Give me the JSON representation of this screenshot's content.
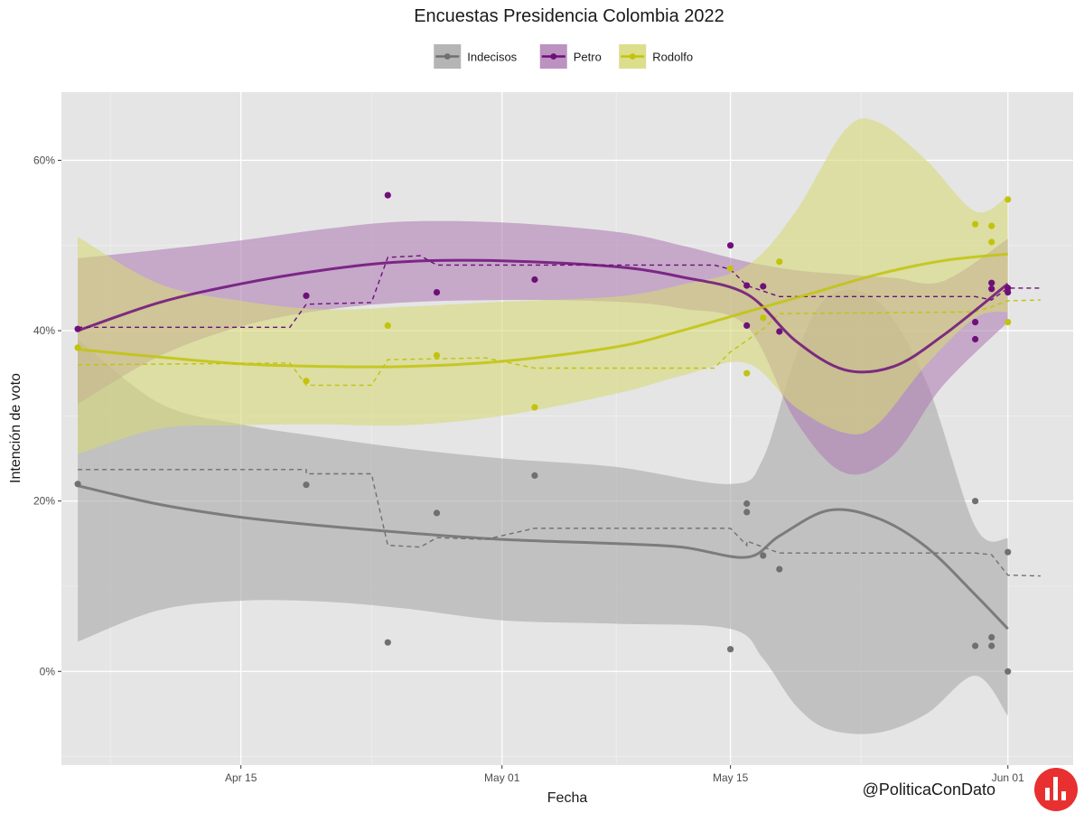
{
  "chart_data": {
    "type": "scatter",
    "title": "Encuestas Presidencia Colombia 2022",
    "xlabel": "Fecha",
    "ylabel": "Intención de voto",
    "x_ticks": [
      {
        "date": "2022-04-15",
        "label": "Apr 15"
      },
      {
        "date": "2022-05-01",
        "label": "May 01"
      },
      {
        "date": "2022-05-15",
        "label": "May 15"
      },
      {
        "date": "2022-06-01",
        "label": "Jun 01"
      }
    ],
    "y_ticks": [
      {
        "value": 0,
        "label": "0%"
      },
      {
        "value": 20,
        "label": "20%"
      },
      {
        "value": 40,
        "label": "40%"
      },
      {
        "value": 60,
        "label": "60%"
      }
    ],
    "xlim": [
      "2022-04-04",
      "2022-06-05"
    ],
    "ylim": [
      -11,
      68
    ],
    "grid": true,
    "legend_position": "top",
    "series": [
      {
        "name": "Indecisos",
        "color": "#707070",
        "fill": "#a8a8a8",
        "points": [
          [
            "2022-04-05",
            22
          ],
          [
            "2022-04-19",
            21.9
          ],
          [
            "2022-04-24",
            3.4
          ],
          [
            "2022-04-27",
            18.6
          ],
          [
            "2022-05-03",
            23
          ],
          [
            "2022-05-15",
            2.6
          ],
          [
            "2022-05-16",
            19.7
          ],
          [
            "2022-05-16",
            18.7
          ],
          [
            "2022-05-17",
            13.6
          ],
          [
            "2022-05-18",
            12
          ],
          [
            "2022-05-30",
            20
          ],
          [
            "2022-05-30",
            3
          ],
          [
            "2022-05-31",
            4
          ],
          [
            "2022-05-31",
            3
          ],
          [
            "2022-06-01",
            14
          ],
          [
            "2022-06-01",
            0
          ]
        ],
        "smooth": [
          [
            "2022-04-05",
            21.8
          ],
          [
            "2022-04-10",
            19.6
          ],
          [
            "2022-04-15",
            18.1
          ],
          [
            "2022-04-20",
            17.1
          ],
          [
            "2022-04-25",
            16.3
          ],
          [
            "2022-05-01",
            15.5
          ],
          [
            "2022-05-08",
            15
          ],
          [
            "2022-05-12",
            14.6
          ],
          [
            "2022-05-16",
            13.4
          ],
          [
            "2022-05-18",
            15.9
          ],
          [
            "2022-05-21",
            18.9
          ],
          [
            "2022-05-24",
            18
          ],
          [
            "2022-05-27",
            14.6
          ],
          [
            "2022-05-30",
            9
          ],
          [
            "2022-06-01",
            5
          ]
        ],
        "band": [
          [
            "2022-04-05",
            3.5,
            39
          ],
          [
            "2022-04-10",
            7.2,
            31.5
          ],
          [
            "2022-04-15",
            8.3,
            29
          ],
          [
            "2022-04-20",
            8.2,
            27.5
          ],
          [
            "2022-04-25",
            7.4,
            26.2
          ],
          [
            "2022-05-01",
            6,
            25
          ],
          [
            "2022-05-08",
            5.6,
            24
          ],
          [
            "2022-05-15",
            5,
            22
          ],
          [
            "2022-05-17",
            1.5,
            25
          ],
          [
            "2022-05-19",
            -4,
            37
          ],
          [
            "2022-05-21",
            -6.8,
            44
          ],
          [
            "2022-05-24",
            -7.2,
            43.5
          ],
          [
            "2022-05-27",
            -5,
            34
          ],
          [
            "2022-05-30",
            -0.5,
            17
          ],
          [
            "2022-06-01",
            -5.2,
            15.6
          ]
        ],
        "trend": [
          [
            "2022-04-05",
            23.7
          ],
          [
            "2022-04-19",
            23.7
          ],
          [
            "2022-04-19",
            23.2
          ],
          [
            "2022-04-23",
            23.2
          ],
          [
            "2022-04-24",
            14.8
          ],
          [
            "2022-04-26",
            14.6
          ],
          [
            "2022-04-27",
            15.7
          ],
          [
            "2022-04-30",
            15.5
          ],
          [
            "2022-05-03",
            16.8
          ],
          [
            "2022-05-15",
            16.8
          ],
          [
            "2022-05-16",
            14.8
          ],
          [
            "2022-05-16",
            15.3
          ],
          [
            "2022-05-18",
            13.9
          ],
          [
            "2022-05-30",
            13.9
          ],
          [
            "2022-05-31",
            13.7
          ],
          [
            "2022-06-01",
            11.3
          ],
          [
            "2022-06-03",
            11.2
          ]
        ]
      },
      {
        "name": "Petro",
        "color": "#6e0f7a",
        "fill": "#b07fb5",
        "points": [
          [
            "2022-04-05",
            40.2
          ],
          [
            "2022-04-19",
            44.1
          ],
          [
            "2022-04-24",
            55.9
          ],
          [
            "2022-04-27",
            44.5
          ],
          [
            "2022-05-03",
            46
          ],
          [
            "2022-05-15",
            50
          ],
          [
            "2022-05-16",
            45.3
          ],
          [
            "2022-05-16",
            40.6
          ],
          [
            "2022-05-17",
            45.2
          ],
          [
            "2022-05-18",
            39.9
          ],
          [
            "2022-05-30",
            41
          ],
          [
            "2022-05-30",
            39
          ],
          [
            "2022-05-31",
            45.6
          ],
          [
            "2022-05-31",
            44.9
          ],
          [
            "2022-06-01",
            45
          ],
          [
            "2022-06-01",
            44.5
          ]
        ],
        "smooth": [
          [
            "2022-04-05",
            40
          ],
          [
            "2022-04-10",
            43.3
          ],
          [
            "2022-04-15",
            45.5
          ],
          [
            "2022-04-20",
            47.1
          ],
          [
            "2022-04-25",
            48.1
          ],
          [
            "2022-05-01",
            48.2
          ],
          [
            "2022-05-08",
            47.5
          ],
          [
            "2022-05-12",
            46.3
          ],
          [
            "2022-05-16",
            44.3
          ],
          [
            "2022-05-19",
            38.8
          ],
          [
            "2022-05-22",
            35.4
          ],
          [
            "2022-05-25",
            35.8
          ],
          [
            "2022-05-28",
            39.4
          ],
          [
            "2022-06-01",
            45.5
          ]
        ],
        "band": [
          [
            "2022-04-05",
            31.4,
            48.5
          ],
          [
            "2022-04-10",
            37,
            49.5
          ],
          [
            "2022-04-15",
            40.5,
            50.6
          ],
          [
            "2022-04-20",
            42.4,
            51.9
          ],
          [
            "2022-04-25",
            43.3,
            52.8
          ],
          [
            "2022-05-01",
            43.6,
            52.7
          ],
          [
            "2022-05-08",
            43.4,
            51.6
          ],
          [
            "2022-05-12",
            42.6,
            50
          ],
          [
            "2022-05-16",
            40.5,
            48.1
          ],
          [
            "2022-05-19",
            29.4,
            47.1
          ],
          [
            "2022-05-22",
            23.3,
            46.6
          ],
          [
            "2022-05-25",
            25.4,
            46.2
          ],
          [
            "2022-05-28",
            33.5,
            45.8
          ],
          [
            "2022-06-01",
            41,
            50.8
          ]
        ],
        "trend": [
          [
            "2022-04-05",
            40.4
          ],
          [
            "2022-04-18",
            40.4
          ],
          [
            "2022-04-19",
            43.1
          ],
          [
            "2022-04-23",
            43.3
          ],
          [
            "2022-04-24",
            48.6
          ],
          [
            "2022-04-26",
            48.8
          ],
          [
            "2022-04-27",
            47.7
          ],
          [
            "2022-04-30",
            47.7
          ],
          [
            "2022-05-03",
            47.7
          ],
          [
            "2022-05-14",
            47.7
          ],
          [
            "2022-05-15",
            47.2
          ],
          [
            "2022-05-16",
            45.3
          ],
          [
            "2022-05-18",
            44
          ],
          [
            "2022-05-30",
            44
          ],
          [
            "2022-05-31",
            43.6
          ],
          [
            "2022-06-01",
            45
          ],
          [
            "2022-06-03",
            45
          ]
        ]
      },
      {
        "name": "Rodolfo",
        "color": "#c2c30d",
        "fill": "#d6d878",
        "points": [
          [
            "2022-04-05",
            38
          ],
          [
            "2022-04-19",
            34.1
          ],
          [
            "2022-04-24",
            40.6
          ],
          [
            "2022-04-27",
            37.1
          ],
          [
            "2022-05-03",
            31
          ],
          [
            "2022-05-15",
            47.3
          ],
          [
            "2022-05-16",
            35
          ],
          [
            "2022-05-17",
            41.5
          ],
          [
            "2022-05-18",
            48.1
          ],
          [
            "2022-05-30",
            52.5
          ],
          [
            "2022-05-31",
            52.3
          ],
          [
            "2022-05-31",
            50.4
          ],
          [
            "2022-06-01",
            55.4
          ],
          [
            "2022-06-01",
            41
          ]
        ],
        "smooth": [
          [
            "2022-04-05",
            37.8
          ],
          [
            "2022-04-10",
            36.9
          ],
          [
            "2022-04-15",
            36.1
          ],
          [
            "2022-04-20",
            35.8
          ],
          [
            "2022-04-25",
            35.8
          ],
          [
            "2022-05-01",
            36.4
          ],
          [
            "2022-05-08",
            38.1
          ],
          [
            "2022-05-12",
            40
          ],
          [
            "2022-05-16",
            42.2
          ],
          [
            "2022-05-20",
            44.4
          ],
          [
            "2022-05-24",
            46.6
          ],
          [
            "2022-05-28",
            48.2
          ],
          [
            "2022-06-01",
            49
          ]
        ],
        "band": [
          [
            "2022-04-05",
            25.5,
            51
          ],
          [
            "2022-04-10",
            28.5,
            45.5
          ],
          [
            "2022-04-15",
            28.9,
            43.5
          ],
          [
            "2022-04-20",
            29,
            42.5
          ],
          [
            "2022-04-25",
            28.9,
            42.8
          ],
          [
            "2022-05-01",
            30,
            43.4
          ],
          [
            "2022-05-08",
            32.6,
            44
          ],
          [
            "2022-05-12",
            34.7,
            45.4
          ],
          [
            "2022-05-16",
            36.2,
            47.6
          ],
          [
            "2022-05-19",
            31,
            54
          ],
          [
            "2022-05-22",
            28,
            63.5
          ],
          [
            "2022-05-24",
            29,
            64.5
          ],
          [
            "2022-05-27",
            36,
            60
          ],
          [
            "2022-05-30",
            41.5,
            54
          ],
          [
            "2022-06-01",
            42.2,
            55.8
          ]
        ],
        "trend": [
          [
            "2022-04-05",
            36
          ],
          [
            "2022-04-18",
            36.2
          ],
          [
            "2022-04-19",
            33.6
          ],
          [
            "2022-04-23",
            33.6
          ],
          [
            "2022-04-24",
            36.6
          ],
          [
            "2022-04-27",
            36.7
          ],
          [
            "2022-04-30",
            36.8
          ],
          [
            "2022-05-03",
            35.6
          ],
          [
            "2022-05-14",
            35.6
          ],
          [
            "2022-05-15",
            37.5
          ],
          [
            "2022-05-17",
            40.2
          ],
          [
            "2022-05-18",
            42
          ],
          [
            "2022-05-30",
            42.2
          ],
          [
            "2022-05-31",
            42.8
          ],
          [
            "2022-06-01",
            43.5
          ],
          [
            "2022-06-03",
            43.6
          ]
        ]
      }
    ]
  },
  "credit": {
    "handle": "@PoliticaConDato",
    "logo_color": "#e7302f"
  }
}
